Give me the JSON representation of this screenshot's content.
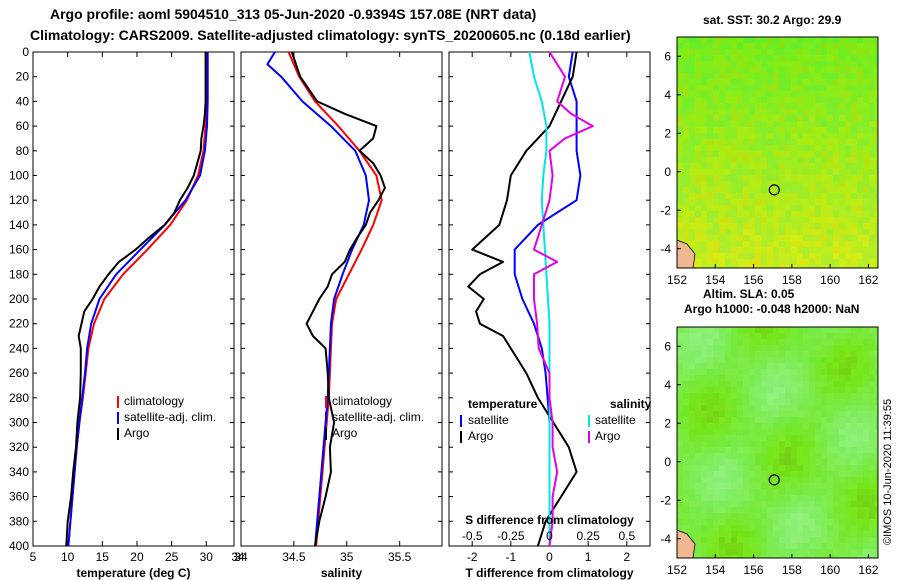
{
  "title_line1": "Argo profile: aoml 5904510_313 05-Jun-2020 -0.9394S 157.08E (NRT data)",
  "title_line2": "Climatology: CARS2009. Satellite-adjusted climatology: synTS_20200605.nc (0.18d earlier)",
  "sst_title": "sat. SST: 30.2 Argo: 29.9",
  "sla_title1": "Altim. SLA: 0.05",
  "sla_title2": "Argo h1000: -0.048 h2000: NaN",
  "timestamp": "©IMOS 10-Jun-2020 11:39:55",
  "colors": {
    "climatology": "#ff0000",
    "satellite": "#0000ff",
    "argo": "#000000",
    "sat_salinity": "#00e5e5",
    "argo_salinity": "#e600e6"
  },
  "chart_data": [
    {
      "type": "line",
      "name": "temperature",
      "xlabel": "temperature (deg C)",
      "xlim": [
        5,
        34
      ],
      "xticks": [
        "5",
        "10",
        "15",
        "20",
        "25",
        "30"
      ],
      "xtick_values": [
        5,
        10,
        15,
        20,
        25,
        30
      ],
      "ylim": [
        0,
        400
      ],
      "yticks": [
        "0",
        "20",
        "40",
        "60",
        "80",
        "100",
        "120",
        "140",
        "160",
        "180",
        "200",
        "220",
        "240",
        "260",
        "280",
        "300",
        "320",
        "340",
        "360",
        "380",
        "400"
      ],
      "legend": [
        "climatology",
        "satellite-adj. clim.",
        "Argo"
      ],
      "series": [
        {
          "name": "climatology",
          "color": "climatology",
          "depth": [
            0,
            20,
            40,
            60,
            80,
            100,
            120,
            140,
            160,
            180,
            200,
            220,
            240,
            260,
            280,
            300,
            320,
            340,
            360,
            380,
            400
          ],
          "values": [
            30.0,
            30.0,
            30.0,
            29.9,
            29.6,
            28.8,
            27.2,
            24.8,
            21.5,
            18.0,
            15.3,
            13.8,
            13.0,
            12.6,
            12.2,
            11.7,
            11.3,
            11.0,
            10.7,
            10.4,
            10.1
          ]
        },
        {
          "name": "satellite-adj. clim.",
          "color": "satellite",
          "depth": [
            0,
            20,
            40,
            60,
            80,
            100,
            120,
            140,
            160,
            180,
            200,
            220,
            240,
            260,
            280,
            300,
            320,
            340,
            360,
            380,
            400
          ],
          "values": [
            30.2,
            30.2,
            30.2,
            30.1,
            29.8,
            29.1,
            27.0,
            24.0,
            20.5,
            17.0,
            14.6,
            13.4,
            12.8,
            12.5,
            12.1,
            11.7,
            11.3,
            11.0,
            10.7,
            10.4,
            10.1
          ]
        },
        {
          "name": "Argo",
          "color": "argo",
          "depth": [
            0,
            20,
            40,
            50,
            60,
            70,
            80,
            90,
            100,
            110,
            120,
            130,
            140,
            150,
            160,
            170,
            180,
            190,
            200,
            210,
            220,
            230,
            240,
            260,
            280,
            300,
            320,
            340,
            360,
            380,
            400
          ],
          "values": [
            29.9,
            29.9,
            29.9,
            29.8,
            29.6,
            29.3,
            29.2,
            28.7,
            28.2,
            27.3,
            26.2,
            25.4,
            24.0,
            21.8,
            19.8,
            17.4,
            15.9,
            14.6,
            13.6,
            12.4,
            12.0,
            11.6,
            11.9,
            11.9,
            11.8,
            11.4,
            11.2,
            10.8,
            10.5,
            10.0,
            9.8
          ]
        }
      ]
    },
    {
      "type": "line",
      "name": "salinity",
      "xlabel": "salinity",
      "xlim": [
        34.0,
        35.9
      ],
      "xticks": [
        "34",
        "34.5",
        "35",
        "35.5"
      ],
      "xtick_values": [
        34.0,
        34.5,
        35.0,
        35.5
      ],
      "ylim": [
        0,
        400
      ],
      "legend": [
        "climatology",
        "satellite-adj. clim.",
        "Argo"
      ],
      "series": [
        {
          "name": "climatology",
          "color": "climatology",
          "depth": [
            0,
            20,
            40,
            60,
            80,
            100,
            120,
            140,
            160,
            180,
            200,
            220,
            240,
            260,
            280,
            300,
            320,
            340,
            360,
            380,
            400
          ],
          "values": [
            34.45,
            34.55,
            34.7,
            34.92,
            35.12,
            35.28,
            35.33,
            35.25,
            35.14,
            35.02,
            34.9,
            34.86,
            34.85,
            34.84,
            34.83,
            34.81,
            34.79,
            34.77,
            34.75,
            34.73,
            34.71
          ]
        },
        {
          "name": "satellite-adj. clim.",
          "color": "satellite",
          "depth": [
            0,
            10,
            20,
            40,
            60,
            80,
            100,
            120,
            140,
            160,
            180,
            200,
            220,
            240,
            260,
            280,
            300,
            320,
            340,
            360,
            380,
            400
          ],
          "values": [
            34.32,
            34.25,
            34.38,
            34.58,
            34.85,
            35.08,
            35.18,
            35.21,
            35.16,
            35.05,
            34.96,
            34.88,
            34.85,
            34.84,
            34.83,
            34.82,
            34.8,
            34.78,
            34.76,
            34.74,
            34.72,
            34.7
          ]
        },
        {
          "name": "Argo",
          "color": "argo",
          "depth": [
            0,
            20,
            40,
            50,
            60,
            70,
            80,
            90,
            100,
            110,
            120,
            130,
            140,
            150,
            160,
            170,
            180,
            190,
            200,
            220,
            230,
            240,
            260,
            280,
            300,
            320,
            340,
            360,
            380,
            400
          ],
          "values": [
            34.48,
            34.56,
            34.72,
            34.98,
            35.28,
            35.25,
            35.12,
            35.25,
            35.32,
            35.36,
            35.3,
            35.22,
            35.18,
            35.1,
            35.03,
            34.98,
            34.86,
            34.82,
            34.74,
            34.62,
            34.68,
            34.8,
            34.82,
            34.83,
            34.88,
            34.84,
            34.85,
            34.8,
            34.74,
            34.7
          ]
        }
      ]
    },
    {
      "type": "line",
      "name": "differences",
      "xlabel": "T difference from climatology",
      "xlabel_top": "S difference from climatology",
      "xlim": [
        -2.6,
        2.6
      ],
      "xticks": [
        "-2",
        "-1",
        "0",
        "1",
        "2"
      ],
      "xtick_values": [
        -2,
        -1,
        0,
        1,
        2
      ],
      "xticks_top": [
        "-0.5",
        "-0.25",
        "0",
        "0.25",
        "0.5"
      ],
      "xtick_values_top": [
        -0.5,
        -0.25,
        0,
        0.25,
        0.5
      ],
      "ylim": [
        0,
        400
      ],
      "legend_titles": [
        "temperature",
        "salinity"
      ],
      "legend_temperature": [
        "satellite",
        "Argo"
      ],
      "legend_salinity": [
        "satellite",
        "Argo"
      ],
      "series": [
        {
          "name": "T satellite",
          "color": "satellite",
          "units": "T",
          "depth": [
            0,
            20,
            40,
            60,
            80,
            100,
            120,
            140,
            160,
            180,
            200,
            220,
            240,
            260,
            280,
            300,
            320,
            340,
            360,
            380,
            400
          ],
          "values": [
            0.6,
            0.5,
            0.7,
            0.7,
            0.7,
            0.8,
            0.7,
            -0.3,
            -0.9,
            -0.9,
            -0.7,
            -0.4,
            -0.2,
            -0.1,
            -0.05,
            0,
            0,
            0,
            0,
            0,
            0
          ]
        },
        {
          "name": "T Argo",
          "color": "argo",
          "units": "T",
          "depth": [
            0,
            20,
            40,
            60,
            80,
            100,
            120,
            140,
            160,
            170,
            180,
            190,
            200,
            210,
            220,
            230,
            240,
            260,
            280,
            300,
            320,
            340,
            360,
            380,
            400
          ],
          "values": [
            0.7,
            0.6,
            0.3,
            0.0,
            -0.6,
            -1.0,
            -1.1,
            -1.3,
            -2.0,
            -1.2,
            -1.8,
            -2.1,
            -1.7,
            -1.9,
            -1.8,
            -1.2,
            -1.0,
            -0.6,
            -0.3,
            0.1,
            0.5,
            0.7,
            0.3,
            -0.1,
            -0.3
          ]
        },
        {
          "name": "S satellite",
          "color": "sat_salinity",
          "units": "S",
          "depth": [
            0,
            20,
            40,
            60,
            80,
            100,
            120,
            140,
            160,
            180,
            200,
            220,
            240,
            260,
            280,
            300,
            320,
            340,
            360,
            380,
            400
          ],
          "values": [
            -0.13,
            -0.1,
            -0.05,
            -0.02,
            -0.02,
            -0.04,
            -0.05,
            -0.04,
            -0.03,
            -0.02,
            -0.01,
            0.0,
            0.0,
            0.0,
            0.0,
            0.0,
            0.0,
            0.0,
            0.0,
            0.0,
            0.0
          ]
        },
        {
          "name": "S Argo",
          "color": "argo_salinity",
          "units": "S",
          "depth": [
            0,
            20,
            40,
            50,
            60,
            70,
            80,
            100,
            120,
            140,
            160,
            170,
            180,
            190,
            200,
            220,
            240,
            260,
            280,
            300,
            320,
            340,
            360,
            380,
            400
          ],
          "values": [
            0.0,
            0.1,
            0.05,
            0.14,
            0.28,
            0.1,
            0.0,
            0.02,
            0.0,
            -0.05,
            -0.1,
            0.05,
            -0.1,
            -0.1,
            -0.1,
            -0.08,
            -0.07,
            0.0,
            0.0,
            0.02,
            0.02,
            0.05,
            0.02,
            0.02,
            0.0
          ]
        }
      ]
    },
    {
      "type": "heatmap",
      "name": "sst_map",
      "xlim": [
        152,
        162.5
      ],
      "xticks": [
        "152",
        "154",
        "156",
        "158",
        "160",
        "162"
      ],
      "xtick_values": [
        152,
        154,
        156,
        158,
        160,
        162
      ],
      "ylim": [
        -5,
        7
      ],
      "yticks": [
        "6",
        "4",
        "2",
        "0",
        "-2",
        "-4"
      ],
      "ytick_values": [
        6,
        4,
        2,
        0,
        -2,
        -4
      ],
      "marker": {
        "lon": 157.08,
        "lat": -0.94
      }
    },
    {
      "type": "heatmap",
      "name": "sla_map",
      "xlim": [
        152,
        162.5
      ],
      "xticks": [
        "152",
        "154",
        "156",
        "158",
        "160",
        "162"
      ],
      "xtick_values": [
        152,
        154,
        156,
        158,
        160,
        162
      ],
      "ylim": [
        -5,
        7
      ],
      "yticks": [
        "6",
        "4",
        "2",
        "0",
        "-2",
        "-4"
      ],
      "ytick_values": [
        6,
        4,
        2,
        0,
        -2,
        -4
      ],
      "marker": {
        "lon": 157.08,
        "lat": -0.94
      }
    }
  ]
}
